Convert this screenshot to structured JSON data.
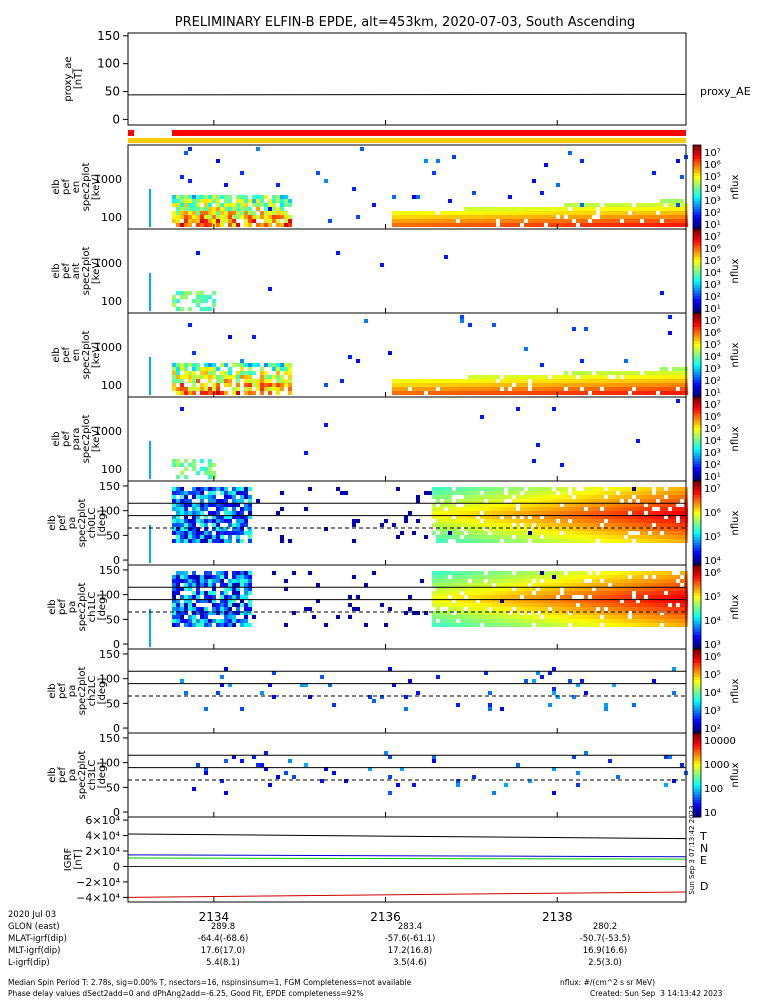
{
  "chart_data": {
    "type": "heatmap",
    "title": "PRELIMINARY ELFIN-B EPDE, alt=453km, 2020-07-03, South Ascending",
    "x_time_minutes": [
      2133.0,
      2139.5
    ],
    "x_ticks": [
      "2134",
      "2136",
      "2138"
    ],
    "panels": [
      {
        "name": "proxy_ae",
        "ylabel": [
          "proxy_ae",
          "[nT]"
        ],
        "ylim": [
          -10,
          155
        ],
        "yticks": [
          "0",
          "50",
          "100",
          "150"
        ],
        "yvals": [
          0,
          50,
          100,
          150
        ],
        "series_label": "proxy_AE",
        "line_value": [
          44,
          45
        ]
      },
      {
        "name": "spec-en-1",
        "ylabel": [
          "elb",
          "pef",
          "en",
          "spec2plot",
          "[keV]"
        ],
        "yticks": [
          "100",
          "1000"
        ],
        "cbar_ticks": [
          "10⁷",
          "10⁶",
          "10⁵",
          "10⁴",
          "10³",
          "10²",
          "10¹"
        ],
        "cbar_label": "nflux"
      },
      {
        "name": "spec-ant",
        "ylabel": [
          "elb",
          "pef",
          "ant",
          "spec2plot",
          "[keV]"
        ],
        "yticks": [
          "100",
          "1000"
        ],
        "cbar_ticks": [
          "10⁷",
          "10⁶",
          "10⁵",
          "10⁴",
          "10³",
          "10²",
          "10¹"
        ],
        "cbar_label": "nflux"
      },
      {
        "name": "spec-en-2",
        "ylabel": [
          "elb",
          "pef",
          "en",
          "spec2plot",
          "[keV]"
        ],
        "yticks": [
          "100",
          "1000"
        ],
        "cbar_ticks": [
          "10⁷",
          "10⁶",
          "10⁵",
          "10⁴",
          "10³",
          "10²",
          "10¹"
        ],
        "cbar_label": "nflux"
      },
      {
        "name": "spec-para",
        "ylabel": [
          "elb",
          "pef",
          "para",
          "spec2plot",
          "[keV]"
        ],
        "yticks": [
          "100",
          "1000"
        ],
        "cbar_ticks": [
          "10⁷",
          "10⁶",
          "10⁵",
          "10⁴",
          "10³",
          "10²",
          "10¹"
        ],
        "cbar_label": "nflux"
      },
      {
        "name": "pa-ch0",
        "ylabel": [
          "elb",
          "pef",
          "pa",
          "spec2plot",
          "ch0LC",
          "[deg]"
        ],
        "yticks": [
          "0",
          "50",
          "100",
          "150"
        ],
        "cbar_ticks": [
          "10⁷",
          "10⁶",
          "10⁵",
          "10⁴"
        ],
        "cbar_label": "nflux"
      },
      {
        "name": "pa-ch1",
        "ylabel": [
          "elb",
          "pef",
          "pa",
          "spec2plot",
          "ch1LC",
          "[deg]"
        ],
        "yticks": [
          "0",
          "50",
          "100",
          "150"
        ],
        "cbar_ticks": [
          "10⁶",
          "10⁵",
          "10⁴",
          "10³"
        ],
        "cbar_label": "nflux"
      },
      {
        "name": "pa-ch2",
        "ylabel": [
          "elb",
          "pef",
          "pa",
          "spec2plot",
          "ch2LC",
          "[deg]"
        ],
        "yticks": [
          "0",
          "50",
          "100",
          "150"
        ],
        "cbar_ticks": [
          "10⁶",
          "10⁵",
          "10⁴",
          "10³",
          "10²"
        ],
        "cbar_label": "nflux"
      },
      {
        "name": "pa-ch3",
        "ylabel": [
          "elb",
          "pef",
          "pa",
          "spec2plot",
          "ch3LC",
          "[deg]"
        ],
        "yticks": [
          "0",
          "50",
          "100",
          "150"
        ],
        "cbar_ticks": [
          "10000",
          "1000",
          "100",
          "10"
        ],
        "cbar_label": "nflux"
      },
      {
        "name": "igrf",
        "ylabel": [
          "IGRF",
          "[nT]"
        ],
        "yticks": [
          "6×10⁴",
          "4×10⁴",
          "2×10⁴",
          "0",
          "−2×10⁴",
          "−4×10⁴"
        ],
        "yvals": [
          60000,
          40000,
          20000,
          0,
          -20000,
          -40000
        ],
        "series": [
          {
            "name": "T",
            "color": "#000000",
            "values": [
              42000,
              36000
            ]
          },
          {
            "name": "N",
            "color": "#0000cc",
            "values": [
              15000,
              12500
            ]
          },
          {
            "name": "E",
            "color": "#00cc00",
            "values": [
              11000,
              9500
            ]
          },
          {
            "name": "D",
            "color": "#cc0000",
            "values": [
              -40000,
              -33000
            ]
          }
        ]
      }
    ],
    "side_stamp": "Sun Sep  3 07:13:42 2023"
  },
  "footer": {
    "date": "2020 Jul 03",
    "rows": [
      {
        "label": "GLON (east)",
        "vals": [
          "289.8",
          "283.4",
          "280.2"
        ]
      },
      {
        "label": "MLAT-igrf(dip)",
        "vals": [
          "-64.4(-68.6)",
          "-57.6(-61.1)",
          "-50.7(-53.5)"
        ]
      },
      {
        "label": "MLT-igrf(dip)",
        "vals": [
          "17.6(17.0)",
          "17.2(16.8)",
          "16.9(16.6)"
        ]
      },
      {
        "label": "L-igrf(dip)",
        "vals": [
          "5.4(8.1)",
          "3.5(4.6)",
          "2.5(3.0)"
        ]
      }
    ],
    "note1_left": "Median Spin Period T: 2.78s, sig=0.00% T, nsectors=16, nspinsinsum=1, FGM Completeness=not available",
    "note1_right": "nflux: #/(cm^2 s sr MeV)",
    "note2_left": "Phase delay values dSect2add=0 and dPhAng2add=-6.25, Good Fit, EPDE completeness=92%",
    "note2_right": "Created: Sun Sep  3 14:13:42 2023"
  }
}
